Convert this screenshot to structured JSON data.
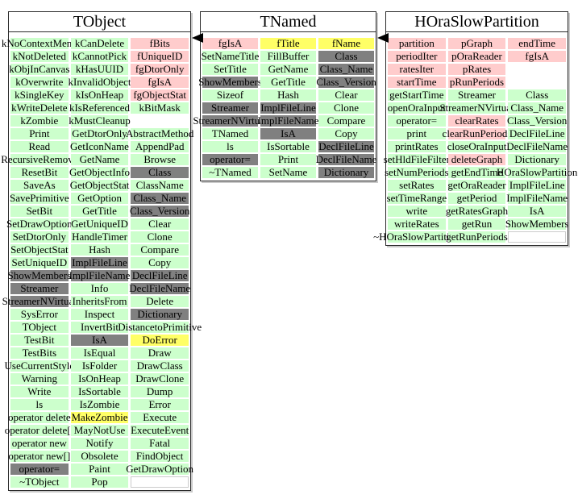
{
  "colors": {
    "member_public": "#ccffcc",
    "member_data": "#ffcccc",
    "member_hidden": "#808080",
    "member_highlight": "#ffff66",
    "arrow": "#000000",
    "background": "#ffffff"
  },
  "arrows": [
    {
      "name": "tnamed-to-tobject",
      "direction": "left",
      "from": "TNamed",
      "to": "TObject"
    },
    {
      "name": "horaslowpartition-to-tnamed",
      "direction": "left",
      "from": "HOraSlowPartition",
      "to": "TNamed"
    }
  ],
  "classes": [
    {
      "title": "TObject",
      "columns": [
        {
          "cells": [
            {
              "t": "kNoContextMenu",
              "c": "green"
            },
            {
              "t": "kNotDeleted",
              "c": "green"
            },
            {
              "t": "kObjInCanvas",
              "c": "green"
            },
            {
              "t": "kOverwrite",
              "c": "green"
            },
            {
              "t": "kSingleKey",
              "c": "green"
            },
            {
              "t": "kWriteDelete",
              "c": "green"
            },
            {
              "t": "kZombie",
              "c": "green"
            },
            {
              "t": "Print",
              "c": "green"
            },
            {
              "t": "Read",
              "c": "green"
            },
            {
              "t": "RecursiveRemove",
              "c": "green"
            },
            {
              "t": "ResetBit",
              "c": "green"
            },
            {
              "t": "SaveAs",
              "c": "green"
            },
            {
              "t": "SavePrimitive",
              "c": "green"
            },
            {
              "t": "SetBit",
              "c": "green"
            },
            {
              "t": "SetDrawOption",
              "c": "green"
            },
            {
              "t": "SetDtorOnly",
              "c": "green"
            },
            {
              "t": "SetObjectStat",
              "c": "green"
            },
            {
              "t": "SetUniqueID",
              "c": "green"
            },
            {
              "t": "ShowMembers",
              "c": "gray"
            },
            {
              "t": "Streamer",
              "c": "gray"
            },
            {
              "t": "StreamerNVirtual",
              "c": "gray"
            },
            {
              "t": "SysError",
              "c": "green"
            },
            {
              "t": "TObject",
              "c": "green"
            },
            {
              "t": "TestBit",
              "c": "green"
            },
            {
              "t": "TestBits",
              "c": "green"
            },
            {
              "t": "UseCurrentStyle",
              "c": "green"
            },
            {
              "t": "Warning",
              "c": "green"
            },
            {
              "t": "Write",
              "c": "green"
            },
            {
              "t": "ls",
              "c": "green"
            },
            {
              "t": "operator delete",
              "c": "green"
            },
            {
              "t": "operator delete[]",
              "c": "green"
            },
            {
              "t": "operator new",
              "c": "green"
            },
            {
              "t": "operator new[]",
              "c": "green"
            },
            {
              "t": "operator=",
              "c": "gray"
            },
            {
              "t": "~TObject",
              "c": "green"
            }
          ]
        },
        {
          "cells": [
            {
              "t": "kCanDelete",
              "c": "green"
            },
            {
              "t": "kCannotPick",
              "c": "green"
            },
            {
              "t": "kHasUUID",
              "c": "green"
            },
            {
              "t": "kInvalidObject",
              "c": "green"
            },
            {
              "t": "kIsOnHeap",
              "c": "green"
            },
            {
              "t": "kIsReferenced",
              "c": "green"
            },
            {
              "t": "kMustCleanup",
              "c": "green"
            },
            {
              "t": "GetDtorOnly",
              "c": "green"
            },
            {
              "t": "GetIconName",
              "c": "green"
            },
            {
              "t": "GetName",
              "c": "green"
            },
            {
              "t": "GetObjectInfo",
              "c": "green"
            },
            {
              "t": "GetObjectStat",
              "c": "green"
            },
            {
              "t": "GetOption",
              "c": "green"
            },
            {
              "t": "GetTitle",
              "c": "green"
            },
            {
              "t": "GetUniqueID",
              "c": "green"
            },
            {
              "t": "HandleTimer",
              "c": "green"
            },
            {
              "t": "Hash",
              "c": "green"
            },
            {
              "t": "ImplFileLine",
              "c": "gray"
            },
            {
              "t": "ImplFileName",
              "c": "gray"
            },
            {
              "t": "Info",
              "c": "green"
            },
            {
              "t": "InheritsFrom",
              "c": "green"
            },
            {
              "t": "Inspect",
              "c": "green"
            },
            {
              "t": "InvertBit",
              "c": "green"
            },
            {
              "t": "IsA",
              "c": "gray"
            },
            {
              "t": "IsEqual",
              "c": "green"
            },
            {
              "t": "IsFolder",
              "c": "green"
            },
            {
              "t": "IsOnHeap",
              "c": "green"
            },
            {
              "t": "IsSortable",
              "c": "green"
            },
            {
              "t": "IsZombie",
              "c": "green"
            },
            {
              "t": "MakeZombie",
              "c": "yellow"
            },
            {
              "t": "MayNotUse",
              "c": "green"
            },
            {
              "t": "Notify",
              "c": "green"
            },
            {
              "t": "Obsolete",
              "c": "green"
            },
            {
              "t": "Paint",
              "c": "green"
            },
            {
              "t": "Pop",
              "c": "green"
            }
          ]
        },
        {
          "cells": [
            {
              "t": "fBits",
              "c": "pink"
            },
            {
              "t": "fUniqueID",
              "c": "pink"
            },
            {
              "t": "fgDtorOnly",
              "c": "pink"
            },
            {
              "t": "fgIsA",
              "c": "pink"
            },
            {
              "t": "fgObjectStat",
              "c": "pink"
            },
            {
              "t": "kBitMask",
              "c": "green"
            },
            {
              "t": "",
              "c": "spacer"
            },
            {
              "t": "AbstractMethod",
              "c": "green"
            },
            {
              "t": "AppendPad",
              "c": "green"
            },
            {
              "t": "Browse",
              "c": "green"
            },
            {
              "t": "Class",
              "c": "gray"
            },
            {
              "t": "ClassName",
              "c": "green"
            },
            {
              "t": "Class_Name",
              "c": "gray"
            },
            {
              "t": "Class_Version",
              "c": "gray"
            },
            {
              "t": "Clear",
              "c": "green"
            },
            {
              "t": "Clone",
              "c": "green"
            },
            {
              "t": "Compare",
              "c": "green"
            },
            {
              "t": "Copy",
              "c": "green"
            },
            {
              "t": "DeclFileLine",
              "c": "gray"
            },
            {
              "t": "DeclFileName",
              "c": "gray"
            },
            {
              "t": "Delete",
              "c": "green"
            },
            {
              "t": "Dictionary",
              "c": "gray"
            },
            {
              "t": "DistancetoPrimitive",
              "c": "green"
            },
            {
              "t": "DoError",
              "c": "yellow"
            },
            {
              "t": "Draw",
              "c": "green"
            },
            {
              "t": "DrawClass",
              "c": "green"
            },
            {
              "t": "DrawClone",
              "c": "green"
            },
            {
              "t": "Dump",
              "c": "green"
            },
            {
              "t": "Error",
              "c": "green"
            },
            {
              "t": "Execute",
              "c": "green"
            },
            {
              "t": "ExecuteEvent",
              "c": "green"
            },
            {
              "t": "Fatal",
              "c": "green"
            },
            {
              "t": "FindObject",
              "c": "green"
            },
            {
              "t": "GetDrawOption",
              "c": "green"
            },
            {
              "t": "",
              "c": "empty"
            }
          ]
        }
      ]
    },
    {
      "title": "TNamed",
      "columns": [
        {
          "cells": [
            {
              "t": "fgIsA",
              "c": "pink"
            },
            {
              "t": "SetNameTitle",
              "c": "green"
            },
            {
              "t": "SetTitle",
              "c": "green"
            },
            {
              "t": "ShowMembers",
              "c": "gray"
            },
            {
              "t": "Sizeof",
              "c": "green"
            },
            {
              "t": "Streamer",
              "c": "gray"
            },
            {
              "t": "StreamerNVirtual",
              "c": "gray"
            },
            {
              "t": "TNamed",
              "c": "green"
            },
            {
              "t": "ls",
              "c": "green"
            },
            {
              "t": "operator=",
              "c": "gray"
            },
            {
              "t": "~TNamed",
              "c": "green"
            }
          ]
        },
        {
          "cells": [
            {
              "t": "fTitle",
              "c": "yellow"
            },
            {
              "t": "FillBuffer",
              "c": "green"
            },
            {
              "t": "GetName",
              "c": "green"
            },
            {
              "t": "GetTitle",
              "c": "green"
            },
            {
              "t": "Hash",
              "c": "green"
            },
            {
              "t": "ImplFileLine",
              "c": "gray"
            },
            {
              "t": "ImplFileName",
              "c": "gray"
            },
            {
              "t": "IsA",
              "c": "gray"
            },
            {
              "t": "IsSortable",
              "c": "green"
            },
            {
              "t": "Print",
              "c": "green"
            },
            {
              "t": "SetName",
              "c": "green"
            }
          ]
        },
        {
          "cells": [
            {
              "t": "fName",
              "c": "yellow"
            },
            {
              "t": "Class",
              "c": "gray"
            },
            {
              "t": "Class_Name",
              "c": "gray"
            },
            {
              "t": "Class_Version",
              "c": "gray"
            },
            {
              "t": "Clear",
              "c": "green"
            },
            {
              "t": "Clone",
              "c": "green"
            },
            {
              "t": "Compare",
              "c": "green"
            },
            {
              "t": "Copy",
              "c": "green"
            },
            {
              "t": "DeclFileLine",
              "c": "gray"
            },
            {
              "t": "DeclFileName",
              "c": "gray"
            },
            {
              "t": "Dictionary",
              "c": "gray"
            }
          ]
        }
      ]
    },
    {
      "title": "HOraSlowPartition",
      "columns": [
        {
          "cells": [
            {
              "t": "partition",
              "c": "pink"
            },
            {
              "t": "periodIter",
              "c": "pink"
            },
            {
              "t": "ratesIter",
              "c": "pink"
            },
            {
              "t": "startTime",
              "c": "pink"
            },
            {
              "t": "getStartTime",
              "c": "green"
            },
            {
              "t": "openOraInput",
              "c": "green"
            },
            {
              "t": "operator=",
              "c": "green"
            },
            {
              "t": "print",
              "c": "green"
            },
            {
              "t": "printRates",
              "c": "green"
            },
            {
              "t": "setHldFileFilter",
              "c": "green"
            },
            {
              "t": "setNumPeriods",
              "c": "green"
            },
            {
              "t": "setRates",
              "c": "green"
            },
            {
              "t": "setTimeRange",
              "c": "green"
            },
            {
              "t": "write",
              "c": "green"
            },
            {
              "t": "writeRates",
              "c": "green"
            },
            {
              "t": "~HOraSlowPartition",
              "c": "green"
            }
          ]
        },
        {
          "cells": [
            {
              "t": "pGraph",
              "c": "pink"
            },
            {
              "t": "pOraReader",
              "c": "pink"
            },
            {
              "t": "pRates",
              "c": "pink"
            },
            {
              "t": "pRunPeriods",
              "c": "pink"
            },
            {
              "t": "Streamer",
              "c": "green"
            },
            {
              "t": "StreamerNVirtual",
              "c": "green"
            },
            {
              "t": "clearRates",
              "c": "pink"
            },
            {
              "t": "clearRunPeriods",
              "c": "pink"
            },
            {
              "t": "closeOraInput",
              "c": "green"
            },
            {
              "t": "deleteGraph",
              "c": "pink"
            },
            {
              "t": "getEndTime",
              "c": "green"
            },
            {
              "t": "getOraReader",
              "c": "green"
            },
            {
              "t": "getPeriod",
              "c": "green"
            },
            {
              "t": "getRatesGraph",
              "c": "green"
            },
            {
              "t": "getRun",
              "c": "green"
            },
            {
              "t": "getRunPeriods",
              "c": "green"
            }
          ]
        },
        {
          "cells": [
            {
              "t": "endTime",
              "c": "pink"
            },
            {
              "t": "fgIsA",
              "c": "pink"
            },
            {
              "t": "",
              "c": "spacer"
            },
            {
              "t": "",
              "c": "spacer"
            },
            {
              "t": "Class",
              "c": "green"
            },
            {
              "t": "Class_Name",
              "c": "green"
            },
            {
              "t": "Class_Version",
              "c": "green"
            },
            {
              "t": "DeclFileLine",
              "c": "green"
            },
            {
              "t": "DeclFileName",
              "c": "green"
            },
            {
              "t": "Dictionary",
              "c": "green"
            },
            {
              "t": "HOraSlowPartition",
              "c": "green"
            },
            {
              "t": "ImplFileLine",
              "c": "green"
            },
            {
              "t": "ImplFileName",
              "c": "green"
            },
            {
              "t": "IsA",
              "c": "green"
            },
            {
              "t": "ShowMembers",
              "c": "green"
            },
            {
              "t": "",
              "c": "empty"
            }
          ]
        }
      ]
    }
  ]
}
